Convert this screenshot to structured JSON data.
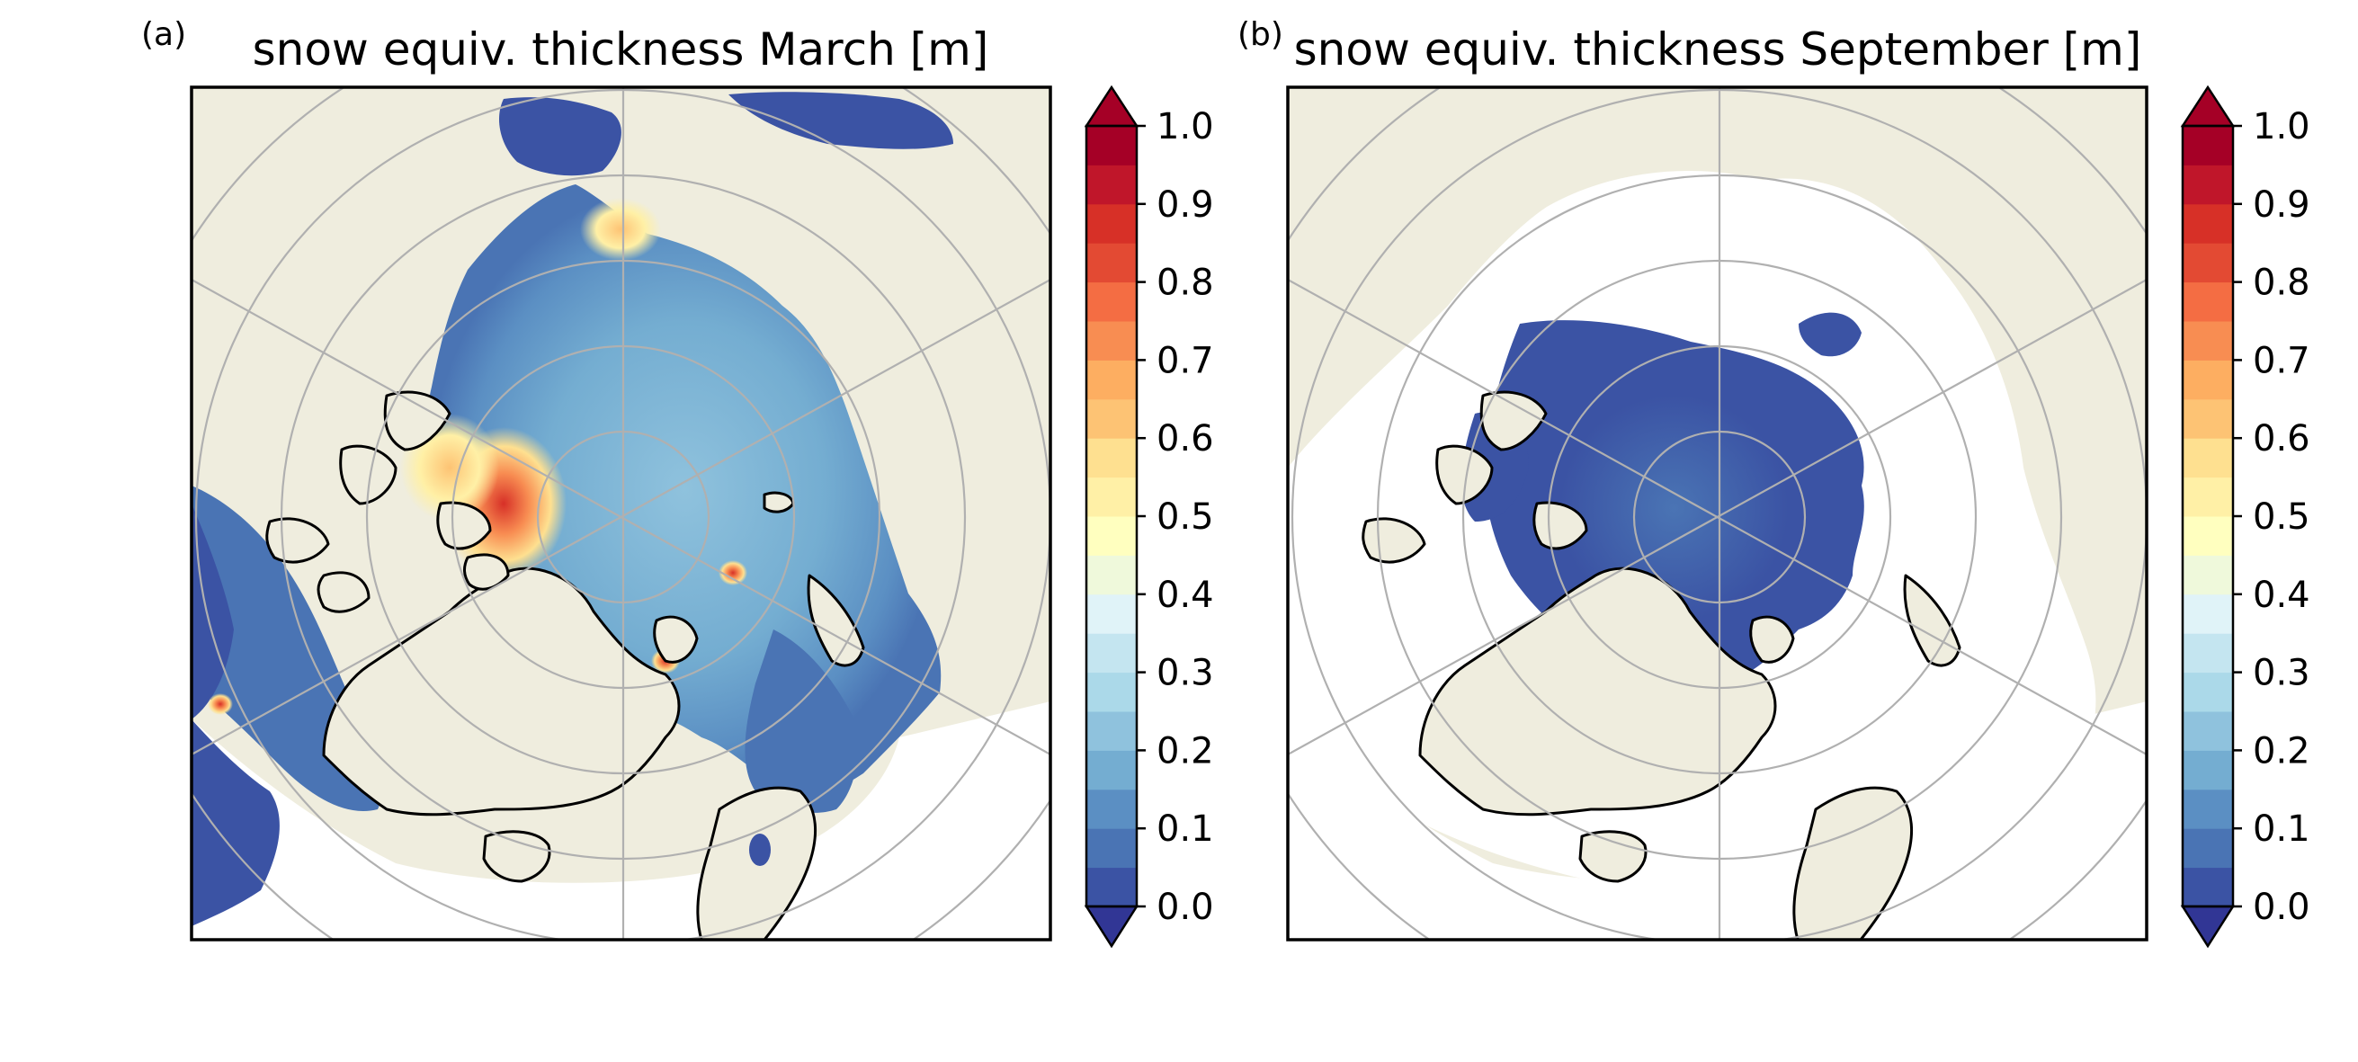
{
  "figure": {
    "panels": [
      {
        "letter": "(a)",
        "title": "snow equiv. thickness March [m]",
        "month": "March",
        "sea_ice_field": "mostly 0.1–0.35 m across the Arctic basin, up to ~0.6–0.8 m north of Greenland / Canadian Archipelago and in the Laptev region, extending into Baffin Bay, Hudson Bay, Barents and Bering/Okhotsk seas"
      },
      {
        "letter": "(b)",
        "title": "snow equiv. thickness September [m]",
        "month": "September",
        "sea_ice_field": "central Arctic only, values 0.0–0.1 m"
      }
    ],
    "colorbar": {
      "ticks": [
        "0.0",
        "0.1",
        "0.2",
        "0.3",
        "0.4",
        "0.5",
        "0.6",
        "0.7",
        "0.8",
        "0.9",
        "1.0"
      ],
      "levels": 20,
      "extend": "both",
      "colors": [
        "#313695",
        "#3b53a4",
        "#4a74b4",
        "#5b8fc3",
        "#74add1",
        "#8fc2dd",
        "#abd9e9",
        "#c4e5f0",
        "#e0f3f8",
        "#eff9db",
        "#ffffbf",
        "#fff0a6",
        "#fee090",
        "#fdc374",
        "#fdae61",
        "#f88d52",
        "#f46d43",
        "#e34a33",
        "#d73027",
        "#c0162a",
        "#a50026"
      ]
    },
    "map_colors": {
      "land": "#efedde",
      "ocean": "#ffffff",
      "coastline": "#000000",
      "gridlines": "#b0b0b0"
    }
  },
  "chart_data": [
    {
      "type": "heatmap",
      "title": "snow equiv. thickness March [m]",
      "projection": "north polar stereographic",
      "value_range": [
        0.0,
        1.0
      ],
      "typical_values": {
        "central_arctic": 0.3,
        "near_greenland_canada": 0.6,
        "marginal_seas": 0.15
      }
    },
    {
      "type": "heatmap",
      "title": "snow equiv. thickness September [m]",
      "projection": "north polar stereographic",
      "value_range": [
        0.0,
        1.0
      ],
      "typical_values": {
        "central_arctic": 0.05,
        "edges": 0.02
      }
    }
  ]
}
